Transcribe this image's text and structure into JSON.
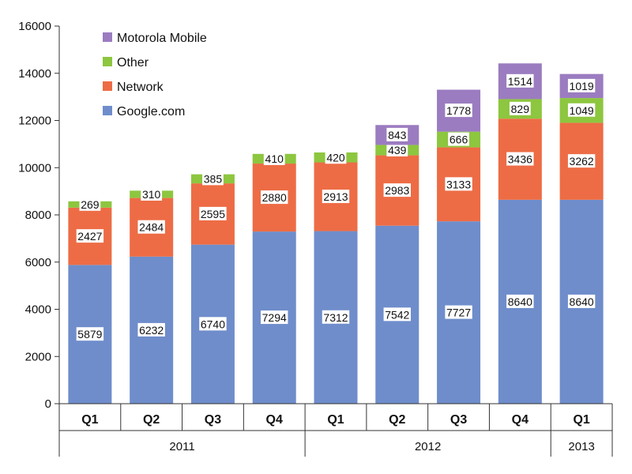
{
  "chart_data": {
    "type": "bar",
    "stacked": true,
    "categories": [
      "Q1",
      "Q2",
      "Q3",
      "Q4",
      "Q1",
      "Q2",
      "Q3",
      "Q4",
      "Q1"
    ],
    "groups": [
      {
        "label": "2011",
        "categories": [
          0,
          1,
          2,
          3
        ]
      },
      {
        "label": "2012",
        "categories": [
          4,
          5,
          6,
          7
        ]
      },
      {
        "label": "2013",
        "categories": [
          8
        ]
      }
    ],
    "series": [
      {
        "name": "Google.com",
        "color": "#6f8dcb",
        "values": [
          5879,
          6232,
          6740,
          7294,
          7312,
          7542,
          7727,
          8640,
          8640
        ]
      },
      {
        "name": "Network",
        "color": "#ed6c45",
        "values": [
          2427,
          2484,
          2595,
          2880,
          2913,
          2983,
          3133,
          3436,
          3262
        ]
      },
      {
        "name": "Other",
        "color": "#8dc63f",
        "values": [
          269,
          310,
          385,
          410,
          420,
          439,
          666,
          829,
          1049
        ]
      },
      {
        "name": "Motorola Mobile",
        "color": "#9b7cc0",
        "values": [
          null,
          null,
          null,
          null,
          null,
          843,
          1778,
          1514,
          1019
        ]
      }
    ],
    "yticks": [
      "0",
      "2000",
      "4000",
      "6000",
      "8000",
      "10000",
      "12000",
      "14000",
      "16000"
    ],
    "ylim": [
      0,
      16000
    ],
    "legend": {
      "placement": "top-left",
      "order": [
        "Motorola Mobile",
        "Other",
        "Network",
        "Google.com"
      ]
    },
    "grid": false,
    "title": "",
    "xlabel": "",
    "ylabel": ""
  }
}
